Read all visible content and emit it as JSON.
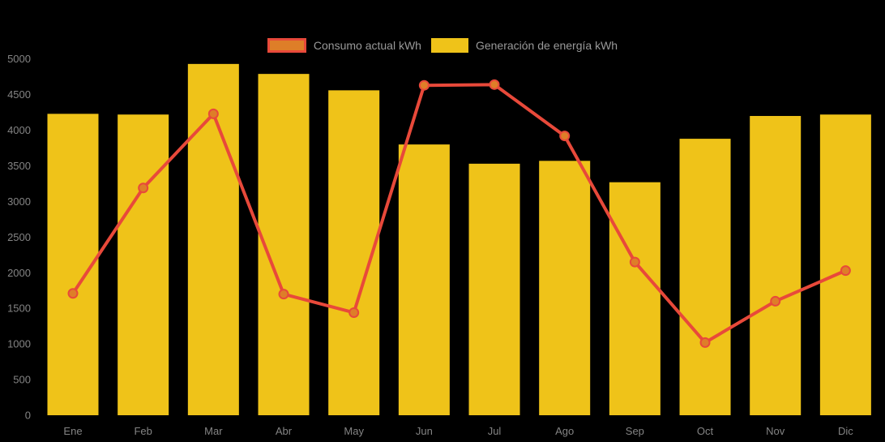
{
  "legend": {
    "items": [
      {
        "id": "consumo",
        "swatch": "line-swatch"
      },
      {
        "id": "generacion",
        "swatch": "bar-swatch"
      }
    ]
  },
  "chart_data": {
    "type": "bar",
    "subtype": "bar-line-combo",
    "categories": [
      "Ene",
      "Feb",
      "Mar",
      "Abr",
      "May",
      "Jun",
      "Jul",
      "Ago",
      "Sep",
      "Oct",
      "Nov",
      "Dic"
    ],
    "series": [
      {
        "name": "Consumo actual kWh",
        "type": "line",
        "color": "#e8493a",
        "point_color": "#de7e28",
        "values": [
          1710,
          3190,
          4230,
          1700,
          1440,
          4630,
          4640,
          3920,
          2150,
          1020,
          1600,
          2030
        ]
      },
      {
        "name": "Generación de energía kWh",
        "type": "bar",
        "color": "#efc319",
        "values": [
          4230,
          4220,
          4930,
          4790,
          4560,
          3800,
          3530,
          3570,
          3270,
          3880,
          4200,
          4220
        ]
      }
    ],
    "title": "",
    "xlabel": "",
    "ylabel": "",
    "ylim": [
      0,
      5000
    ],
    "ytick_step": 500,
    "yticks": [
      0,
      500,
      1000,
      1500,
      2000,
      2500,
      3000,
      3500,
      4000,
      4500,
      5000
    ],
    "grid": false,
    "legend_position": "top-center",
    "background_color": "#000000",
    "axis_text_color": "#848484",
    "legend_text_color": "#999999"
  }
}
